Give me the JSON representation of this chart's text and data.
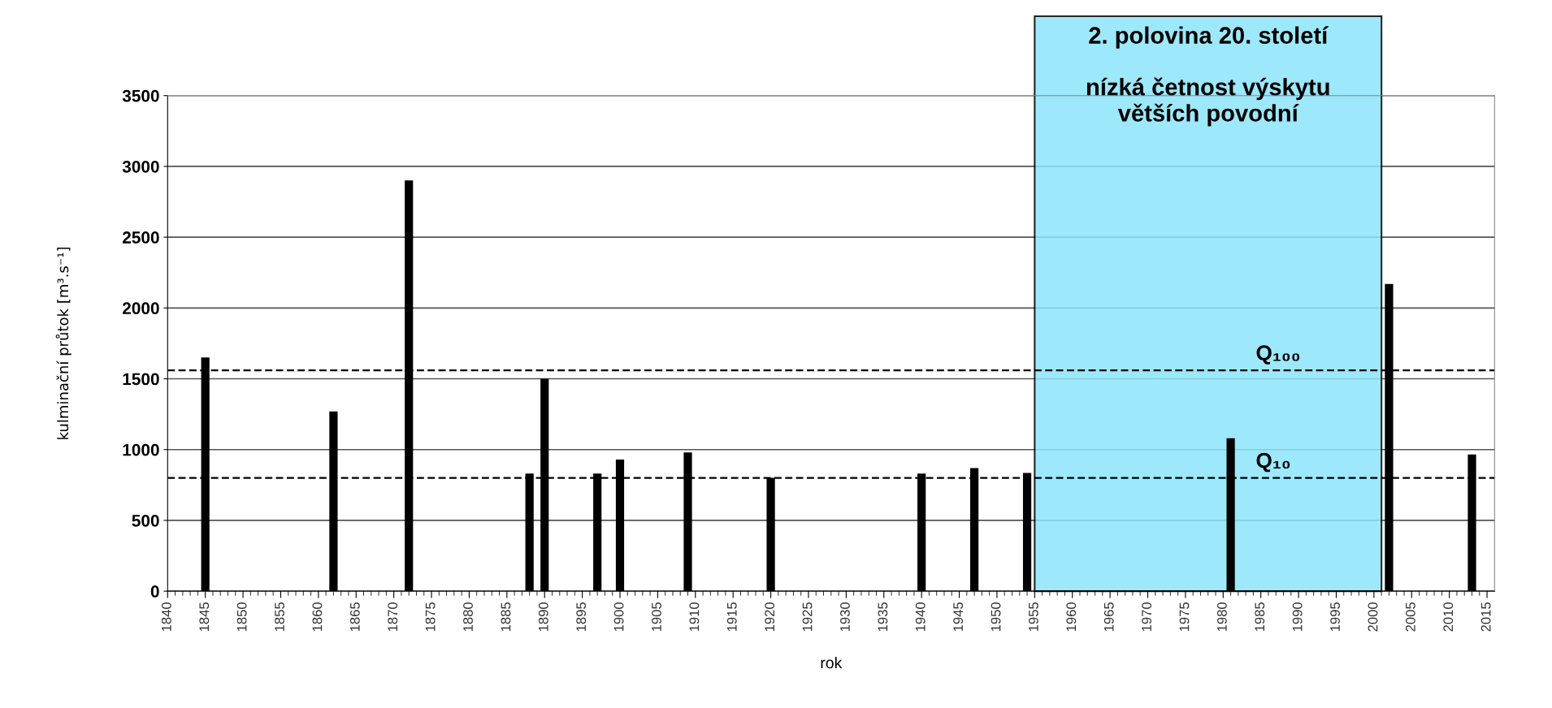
{
  "chart_data": {
    "type": "bar",
    "xlabel": "rok",
    "ylabel": "kulminační průtok [m³.s⁻¹]",
    "x": [
      1845,
      1862,
      1872,
      1888,
      1890,
      1897,
      1900,
      1909,
      1920,
      1940,
      1947,
      1954,
      1981,
      2002,
      2013
    ],
    "series": [
      {
        "color": "#000000",
        "values": [
          1650,
          1270,
          2900,
          830,
          1500,
          830,
          930,
          980,
          800,
          830,
          870,
          835,
          1080,
          2170,
          965
        ]
      }
    ],
    "xlim": [
      1840,
      2016
    ],
    "ylim": [
      0,
      3500
    ],
    "xticks": [
      1840,
      1845,
      1850,
      1855,
      1860,
      1865,
      1870,
      1875,
      1880,
      1885,
      1890,
      1895,
      1900,
      1905,
      1910,
      1915,
      1920,
      1925,
      1930,
      1935,
      1940,
      1945,
      1950,
      1955,
      1960,
      1965,
      1970,
      1975,
      1980,
      1985,
      1990,
      1995,
      2000,
      2005,
      2010,
      2015
    ],
    "yticks": [
      0,
      500,
      1000,
      1500,
      2000,
      2500,
      3000,
      3500
    ],
    "grid": "y",
    "ref_lines": [
      {
        "axis": "y",
        "value": 1560,
        "label": "Q₁₀₀",
        "color": "#000000",
        "line_style": "dashed"
      },
      {
        "axis": "y",
        "value": 800,
        "label": "Q₁₀",
        "color": "#000000",
        "line_style": "dashed"
      }
    ],
    "bands": [
      {
        "axis": "x",
        "from": 1955,
        "to": 2001,
        "label": "2. polovina 20. století\n\nnízká četnost výskytu\nvětších povodní",
        "color": "#8ce4fb"
      }
    ]
  }
}
